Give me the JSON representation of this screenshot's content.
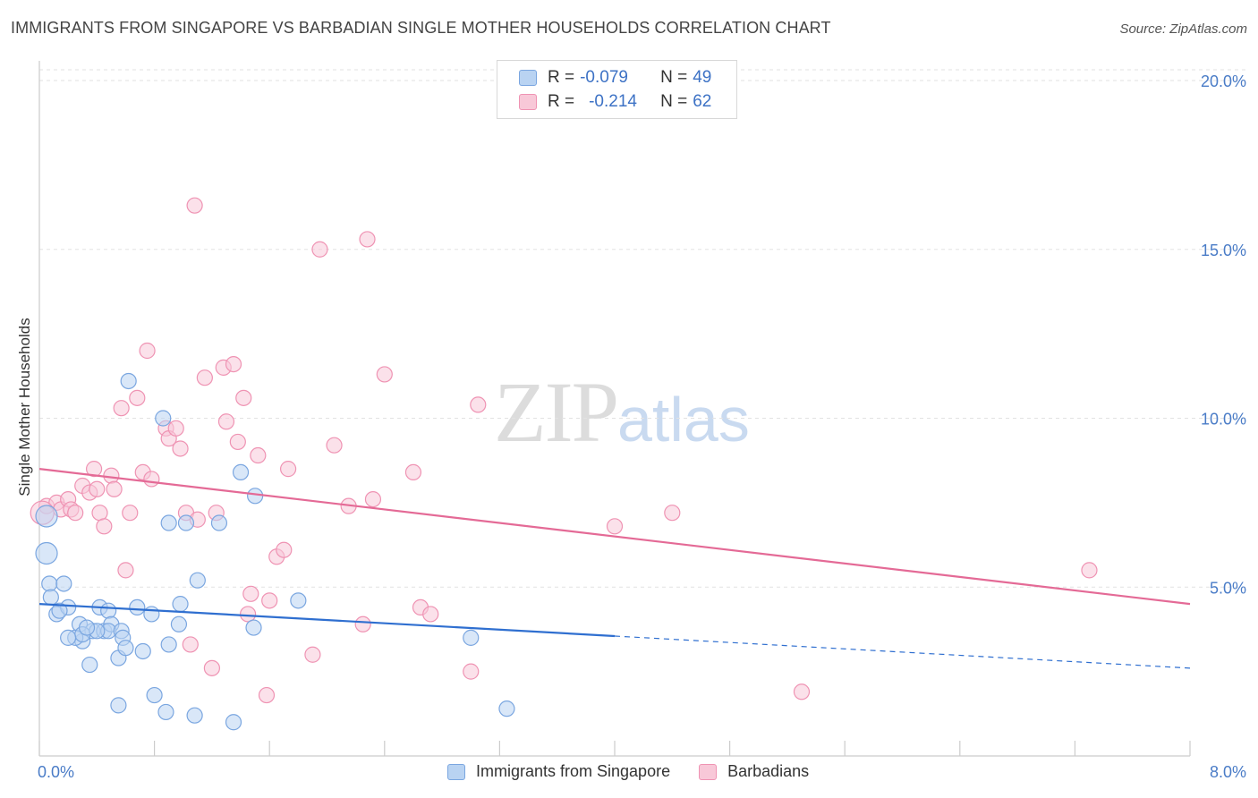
{
  "header": {
    "title": "IMMIGRANTS FROM SINGAPORE VS BARBADIAN SINGLE MOTHER HOUSEHOLDS CORRELATION CHART",
    "source": "Source: ZipAtlas.com"
  },
  "watermark": {
    "zip": "ZIP",
    "atlas": "atlas"
  },
  "legend": {
    "rows": [
      {
        "r_label": "R = ",
        "r_value": "-0.079",
        "n_label": "N = ",
        "n_value": "49"
      },
      {
        "r_label": "R = ",
        "r_value": "-0.214",
        "n_label": "N = ",
        "n_value": "62"
      }
    ]
  },
  "colors": {
    "blue_fill": "#b9d3f2",
    "blue_stroke": "#7aa6e0",
    "blue_line": "#2f6fd0",
    "pink_fill": "#f8c8d8",
    "pink_stroke": "#ef93b3",
    "pink_line": "#e46a96",
    "tick_text": "#4a7cc7"
  },
  "chart_data": {
    "type": "scatter",
    "title": "IMMIGRANTS FROM SINGAPORE VS BARBADIAN SINGLE MOTHER HOUSEHOLDS CORRELATION CHART",
    "xlabel": "",
    "ylabel": "Single Mother Households",
    "xlim": [
      0,
      8
    ],
    "ylim": [
      0,
      20
    ],
    "x_tick_labels": [
      "0.0%",
      "8.0%"
    ],
    "y_ticks": [
      5,
      10,
      15,
      20
    ],
    "y_tick_labels": [
      "5.0%",
      "10.0%",
      "15.0%",
      "20.0%"
    ],
    "grid": true,
    "legend_position": "top-center",
    "series": [
      {
        "name": "Immigrants from Singapore",
        "color": "#7aa6e0",
        "trend": {
          "x": [
            0.0,
            4.0
          ],
          "y": [
            4.5,
            3.55
          ],
          "dashed_to": [
            8.0,
            2.6
          ]
        },
        "points": [
          [
            0.05,
            7.1
          ],
          [
            0.05,
            6.0
          ],
          [
            0.07,
            5.1
          ],
          [
            0.08,
            4.7
          ],
          [
            0.17,
            5.1
          ],
          [
            0.12,
            4.2
          ],
          [
            0.2,
            4.4
          ],
          [
            0.14,
            4.3
          ],
          [
            0.28,
            3.9
          ],
          [
            0.3,
            3.4
          ],
          [
            0.25,
            3.5
          ],
          [
            0.37,
            3.7
          ],
          [
            0.3,
            3.6
          ],
          [
            0.35,
            2.7
          ],
          [
            0.42,
            4.4
          ],
          [
            0.45,
            3.7
          ],
          [
            0.48,
            4.3
          ],
          [
            0.5,
            3.9
          ],
          [
            0.48,
            3.7
          ],
          [
            0.57,
            3.7
          ],
          [
            0.55,
            2.9
          ],
          [
            0.58,
            3.5
          ],
          [
            0.6,
            3.2
          ],
          [
            0.62,
            11.1
          ],
          [
            0.68,
            4.4
          ],
          [
            0.72,
            3.1
          ],
          [
            0.78,
            4.2
          ],
          [
            0.8,
            1.8
          ],
          [
            0.86,
            10.0
          ],
          [
            0.9,
            3.3
          ],
          [
            0.9,
            6.9
          ],
          [
            0.97,
            3.9
          ],
          [
            0.98,
            4.5
          ],
          [
            1.02,
            6.9
          ],
          [
            1.1,
            5.2
          ],
          [
            1.25,
            6.9
          ],
          [
            1.4,
            8.4
          ],
          [
            1.5,
            7.7
          ],
          [
            1.8,
            4.6
          ],
          [
            1.49,
            3.8
          ],
          [
            0.55,
            1.5
          ],
          [
            0.88,
            1.3
          ],
          [
            1.08,
            1.2
          ],
          [
            1.35,
            1.0
          ],
          [
            3.0,
            3.5
          ],
          [
            3.25,
            1.4
          ],
          [
            0.4,
            3.7
          ],
          [
            0.33,
            3.8
          ],
          [
            0.2,
            3.5
          ]
        ]
      },
      {
        "name": "Barbadians",
        "color": "#ef93b3",
        "trend": {
          "x": [
            0.0,
            8.0
          ],
          "y": [
            8.5,
            4.5
          ]
        },
        "points": [
          [
            0.05,
            7.4
          ],
          [
            0.12,
            7.5
          ],
          [
            0.15,
            7.3
          ],
          [
            0.2,
            7.6
          ],
          [
            0.22,
            7.3
          ],
          [
            0.25,
            7.2
          ],
          [
            0.3,
            8.0
          ],
          [
            0.35,
            7.8
          ],
          [
            0.38,
            8.5
          ],
          [
            0.42,
            7.2
          ],
          [
            0.45,
            6.8
          ],
          [
            0.5,
            8.3
          ],
          [
            0.52,
            7.9
          ],
          [
            0.57,
            10.3
          ],
          [
            0.6,
            5.5
          ],
          [
            0.63,
            7.2
          ],
          [
            0.68,
            10.6
          ],
          [
            0.72,
            8.4
          ],
          [
            0.75,
            12.0
          ],
          [
            0.78,
            8.2
          ],
          [
            0.88,
            9.7
          ],
          [
            0.9,
            9.4
          ],
          [
            0.95,
            9.7
          ],
          [
            0.98,
            9.1
          ],
          [
            1.02,
            7.2
          ],
          [
            1.05,
            3.3
          ],
          [
            1.08,
            16.3
          ],
          [
            1.1,
            7.0
          ],
          [
            1.15,
            11.2
          ],
          [
            1.2,
            2.6
          ],
          [
            1.23,
            7.2
          ],
          [
            1.28,
            11.5
          ],
          [
            1.3,
            9.9
          ],
          [
            1.35,
            11.6
          ],
          [
            1.38,
            9.3
          ],
          [
            1.42,
            10.6
          ],
          [
            1.45,
            4.2
          ],
          [
            1.47,
            4.8
          ],
          [
            1.52,
            8.9
          ],
          [
            1.58,
            1.8
          ],
          [
            1.6,
            4.6
          ],
          [
            1.65,
            5.9
          ],
          [
            1.7,
            6.1
          ],
          [
            1.73,
            8.5
          ],
          [
            1.9,
            3.0
          ],
          [
            1.95,
            15.0
          ],
          [
            2.05,
            9.2
          ],
          [
            2.15,
            7.4
          ],
          [
            2.25,
            3.9
          ],
          [
            2.28,
            15.3
          ],
          [
            2.32,
            7.6
          ],
          [
            2.4,
            11.3
          ],
          [
            2.6,
            8.4
          ],
          [
            2.65,
            4.4
          ],
          [
            2.72,
            4.2
          ],
          [
            3.0,
            2.5
          ],
          [
            3.05,
            10.4
          ],
          [
            4.0,
            6.8
          ],
          [
            4.4,
            7.2
          ],
          [
            5.3,
            1.9
          ],
          [
            7.3,
            5.5
          ],
          [
            0.4,
            7.9
          ]
        ]
      }
    ]
  },
  "bottom_legend": [
    {
      "label": "Immigrants from Singapore"
    },
    {
      "label": "Barbadians"
    }
  ]
}
